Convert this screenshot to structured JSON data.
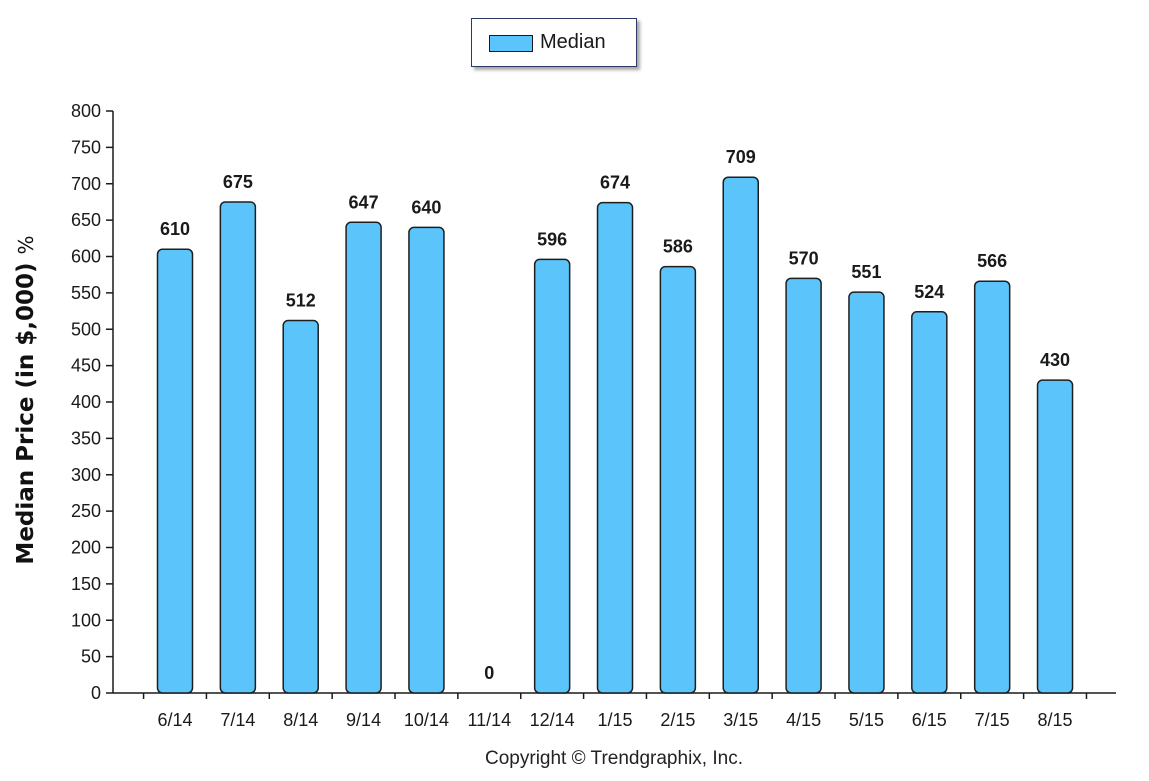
{
  "chart_data": {
    "type": "bar",
    "legend": {
      "label": "Median",
      "placement": "top-center"
    },
    "ylabel": "Median Price (in $,000)",
    "ylabel_suffix": "%",
    "ylim": [
      0,
      800
    ],
    "ytick_step": 50,
    "yticks": [
      "0",
      "50",
      "100",
      "150",
      "200",
      "250",
      "300",
      "350",
      "400",
      "450",
      "500",
      "550",
      "600",
      "650",
      "700",
      "750",
      "800"
    ],
    "categories": [
      "6/14",
      "7/14",
      "8/14",
      "9/14",
      "10/14",
      "11/14",
      "12/14",
      "1/15",
      "2/15",
      "3/15",
      "4/15",
      "5/15",
      "6/15",
      "7/15",
      "8/15"
    ],
    "series": [
      {
        "name": "Median",
        "values": [
          610,
          675,
          512,
          647,
          640,
          0,
          596,
          674,
          586,
          709,
          570,
          551,
          524,
          566,
          430
        ]
      }
    ],
    "grid": false,
    "bar_color": "#5bc4fa",
    "bar_border_color": "#1e1e1e"
  },
  "footer": {
    "copyright": "Copyright © Trendgraphix, Inc."
  }
}
